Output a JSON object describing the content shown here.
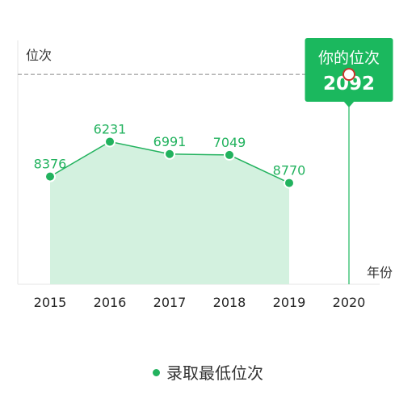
{
  "chart_data": {
    "type": "area",
    "ylabel": "位次",
    "xlabel": "年份",
    "x": [
      "2015",
      "2016",
      "2017",
      "2018",
      "2019",
      "2020"
    ],
    "series": [
      {
        "name": "录取最低位次",
        "x": [
          "2015",
          "2016",
          "2017",
          "2018",
          "2019"
        ],
        "values": [
          8376,
          6231,
          6991,
          7049,
          8770
        ]
      }
    ],
    "ylim": [
      0,
      15000
    ],
    "highlight": {
      "x": "2020",
      "value": 2092,
      "label": "你的位次",
      "value_label": "2092"
    },
    "grid": false,
    "legend_position": "bottom"
  },
  "colors": {
    "line": "#22b25e",
    "area": "#d3f1df",
    "callout": "#1bb85e",
    "marker": "#c9352b",
    "reference": "#888888",
    "axis": "#e5e5e5"
  }
}
